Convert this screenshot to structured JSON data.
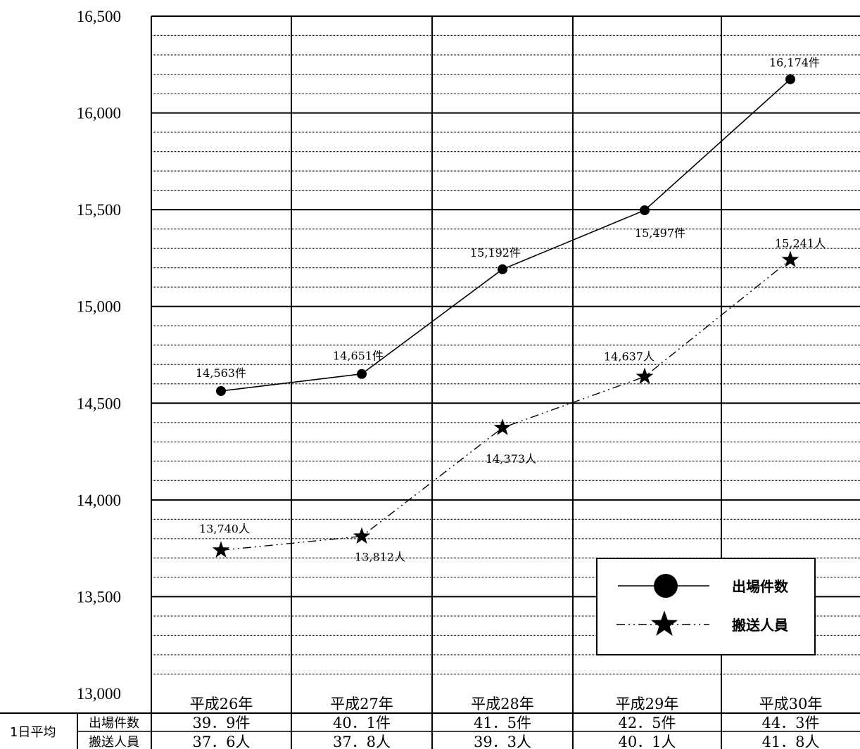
{
  "chart_data": {
    "type": "line",
    "categories": [
      "平成26年",
      "平成27年",
      "平成28年",
      "平成29年",
      "平成30年"
    ],
    "ylim": [
      13000,
      16500
    ],
    "yticks": [
      "13,000",
      "13,500",
      "14,000",
      "14,500",
      "15,000",
      "15,500",
      "16,000",
      "16,500"
    ],
    "grid": true,
    "legend_position": "bottom-right",
    "series": [
      {
        "name": "出場件数",
        "marker": "circle",
        "line_style": "solid",
        "values": [
          14563,
          14651,
          15192,
          15497,
          16174
        ],
        "labels": [
          "14,563件",
          "14,651件",
          "15,192件",
          "15,497件",
          "16,174件"
        ]
      },
      {
        "name": "搬送人員",
        "marker": "star",
        "line_style": "dash-dot-dot",
        "values": [
          13740,
          13812,
          14373,
          14637,
          15241
        ],
        "labels": [
          "13,740人",
          "13,812人",
          "14,373人",
          "14,637人",
          "15,241人"
        ]
      }
    ],
    "table": {
      "group_label": "1日平均",
      "rows": [
        {
          "label": "出場件数",
          "cells": [
            "39．9件",
            "40．1件",
            "41．5件",
            "42．5件",
            "44．3件"
          ]
        },
        {
          "label": "搬送人員",
          "cells": [
            "37．6人",
            "37．8人",
            "39．3人",
            "40．1人",
            "41．8人"
          ]
        }
      ]
    }
  }
}
